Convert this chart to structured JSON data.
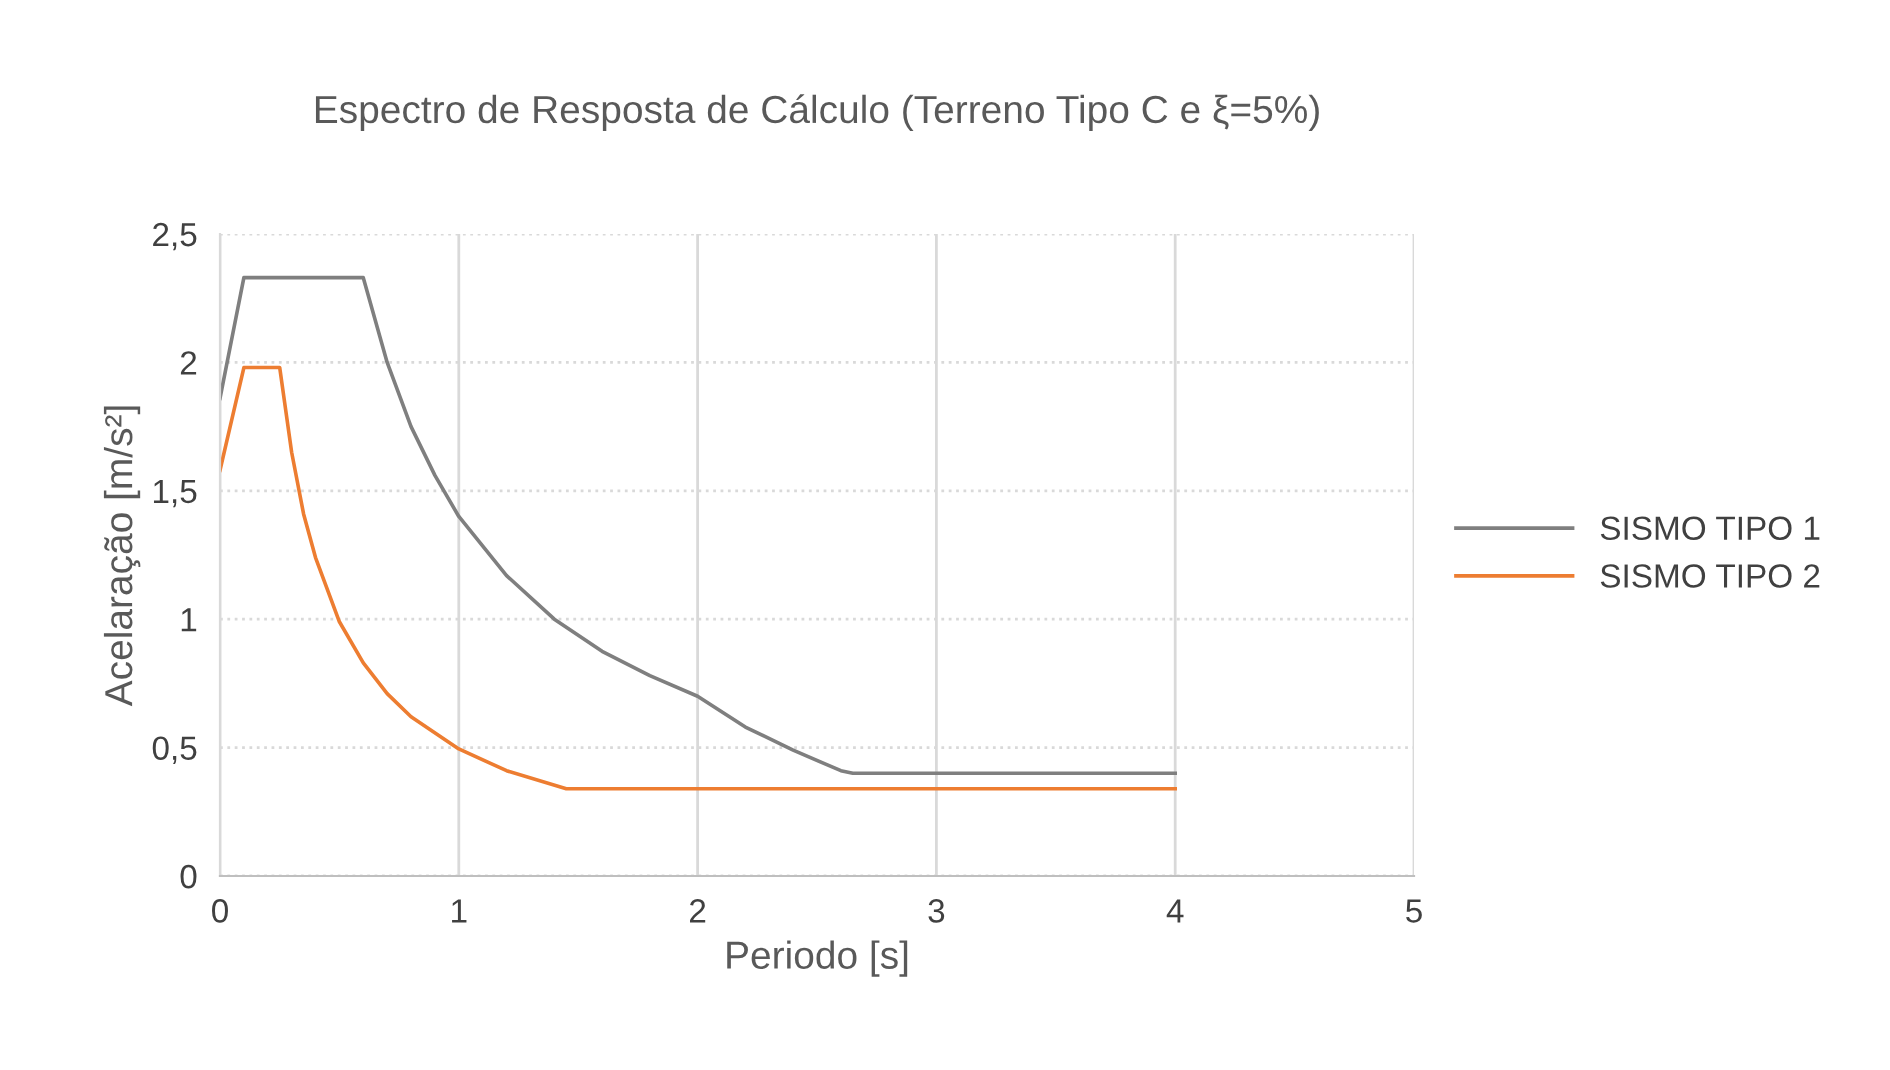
{
  "chart_data": {
    "type": "line",
    "title": "Espectro de Resposta de Cálculo (Terreno Tipo C e ξ=5%)",
    "xlabel": "Periodo [s]",
    "ylabel": "Acelaração [m/s²]",
    "xlim": [
      0,
      5
    ],
    "xticks": [
      0,
      1,
      2,
      3,
      4,
      5
    ],
    "ylim": [
      0,
      2.5
    ],
    "yticks": [
      0,
      {
        "value": 0.5,
        "label": "0,5"
      },
      1,
      {
        "value": 1.5,
        "label": "1,5"
      },
      2,
      {
        "value": 2.5,
        "label": "2,5"
      }
    ],
    "grid": true,
    "legend": "right",
    "marker": "none",
    "line_style": "solid",
    "series": [
      {
        "name": "SISMO TIPO 1",
        "color": "#7f7f7f",
        "x": [
          0,
          0.1,
          0.6,
          0.7,
          0.8,
          0.9,
          1.0,
          1.2,
          1.4,
          1.6,
          1.8,
          2.0,
          2.2,
          2.4,
          2.6,
          2.65,
          4
        ],
        "values": [
          1.86,
          2.33,
          2.33,
          2.0,
          1.75,
          1.56,
          1.4,
          1.17,
          1.0,
          0.875,
          0.78,
          0.7,
          0.58,
          0.49,
          0.41,
          0.4,
          0.4
        ]
      },
      {
        "name": "SISMO TIPO 2",
        "color": "#ed7d31",
        "x": [
          0,
          0.1,
          0.25,
          0.3,
          0.35,
          0.4,
          0.5,
          0.6,
          0.7,
          0.8,
          1.0,
          1.2,
          1.45,
          4
        ],
        "values": [
          1.58,
          1.98,
          1.98,
          1.65,
          1.41,
          1.24,
          0.99,
          0.83,
          0.71,
          0.62,
          0.495,
          0.41,
          0.34,
          0.34
        ]
      }
    ]
  }
}
